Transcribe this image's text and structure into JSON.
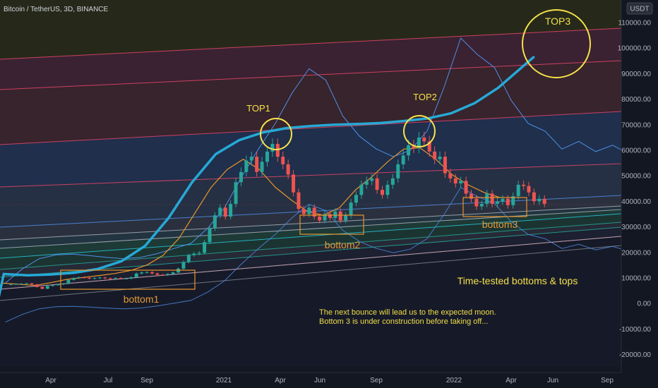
{
  "header": {
    "symbol": "Bitcoin / TetherUS, 3D, BINANCE",
    "currency_label": "USDT"
  },
  "colors": {
    "background": "#131722",
    "mean_curve": "#26a9d6",
    "ema_line": "#e8952c",
    "upper_band_line": "#4f8fe8",
    "candle_up": "#26a69a",
    "candle_down": "#ef5350",
    "circle": "#f5e04a",
    "box": "#e8952c"
  },
  "chart_data": {
    "type": "candlestick",
    "y_axis": {
      "ticks": [
        "110000.00",
        "100000.00",
        "90000.00",
        "80000.00",
        "70000.00",
        "60000.00",
        "50000.00",
        "40000.00",
        "30000.00",
        "20000.00",
        "10000.00",
        "0.00",
        "-10000.00",
        "-20000.00"
      ],
      "range": [
        -25000,
        115000
      ]
    },
    "x_axis": {
      "ticks": [
        "Apr",
        "Jul",
        "Sep",
        "2021",
        "Apr",
        "Jun",
        "Sep",
        "2022",
        "Apr",
        "Jun",
        "Sep"
      ]
    },
    "bands": [
      {
        "name": "band-top",
        "color": "#e8456a"
      },
      {
        "name": "band-2",
        "color": "#e8456a"
      },
      {
        "name": "band-3",
        "color": "#e8456a"
      },
      {
        "name": "band-4",
        "color": "#e8456a"
      },
      {
        "name": "band-5",
        "color": "#4f8fe8"
      },
      {
        "name": "band-6",
        "color": "#aab0bb"
      },
      {
        "name": "band-7",
        "color": "#aab0bb"
      },
      {
        "name": "band-8",
        "color": "#26c6da"
      },
      {
        "name": "band-9",
        "color": "#26a69a"
      },
      {
        "name": "band-10",
        "color": "#26a69a"
      },
      {
        "name": "band-11",
        "color": "#e8456a"
      },
      {
        "name": "band-12",
        "color": "#aab0bb"
      }
    ],
    "annotations": {
      "top1": "TOP1",
      "top2": "TOP2",
      "top3": "TOP3",
      "bottom1": "bottom1",
      "bottom2": "bottom2",
      "bottom3": "bottom3",
      "subtitle": "Time-tested bottoms & tops",
      "note_line1": "The next bounce will lead us to the expected moon.",
      "note_line2": "Bottom 3 is under construction before taking off..."
    },
    "price_path": [
      [
        0,
        6800
      ],
      [
        3,
        7000
      ],
      [
        6,
        7100
      ],
      [
        9,
        7200
      ],
      [
        12,
        7300
      ],
      [
        15,
        6900
      ],
      [
        18,
        5900
      ],
      [
        21,
        5200
      ],
      [
        24,
        6300
      ],
      [
        27,
        6600
      ],
      [
        30,
        6900
      ],
      [
        33,
        7200
      ],
      [
        36,
        8700
      ],
      [
        39,
        9400
      ],
      [
        42,
        9700
      ],
      [
        45,
        9500
      ],
      [
        48,
        9200
      ],
      [
        51,
        9400
      ],
      [
        54,
        9600
      ],
      [
        57,
        9300
      ],
      [
        60,
        9100
      ],
      [
        63,
        9400
      ],
      [
        66,
        9200
      ],
      [
        69,
        9200
      ],
      [
        72,
        9700
      ],
      [
        75,
        11200
      ],
      [
        78,
        11600
      ],
      [
        81,
        11700
      ],
      [
        84,
        11200
      ],
      [
        87,
        10700
      ],
      [
        90,
        10600
      ],
      [
        93,
        11000
      ],
      [
        96,
        11600
      ],
      [
        99,
        13100
      ],
      [
        102,
        15700
      ],
      [
        105,
        18400
      ],
      [
        108,
        19000
      ],
      [
        111,
        19300
      ],
      [
        114,
        23500
      ],
      [
        117,
        28900
      ],
      [
        120,
        34000
      ],
      [
        123,
        37000
      ],
      [
        126,
        33500
      ],
      [
        129,
        38500
      ],
      [
        132,
        47000
      ],
      [
        135,
        51000
      ],
      [
        138,
        55500
      ],
      [
        141,
        57000
      ],
      [
        144,
        51000
      ],
      [
        147,
        55000
      ],
      [
        150,
        59000
      ],
      [
        153,
        62000
      ],
      [
        156,
        57000
      ],
      [
        159,
        54000
      ],
      [
        162,
        50000
      ],
      [
        165,
        43000
      ],
      [
        168,
        36500
      ],
      [
        171,
        34500
      ],
      [
        174,
        37000
      ],
      [
        177,
        33500
      ],
      [
        180,
        32000
      ],
      [
        183,
        34500
      ],
      [
        186,
        33000
      ],
      [
        189,
        35500
      ],
      [
        192,
        32000
      ],
      [
        195,
        34000
      ],
      [
        198,
        39000
      ],
      [
        201,
        42000
      ],
      [
        204,
        46000
      ],
      [
        207,
        47500
      ],
      [
        210,
        48500
      ],
      [
        213,
        44000
      ],
      [
        216,
        42000
      ],
      [
        219,
        46000
      ],
      [
        222,
        48500
      ],
      [
        225,
        54000
      ],
      [
        228,
        57500
      ],
      [
        231,
        61500
      ],
      [
        234,
        60500
      ],
      [
        237,
        64500
      ],
      [
        240,
        63000
      ],
      [
        243,
        59000
      ],
      [
        246,
        56000
      ],
      [
        249,
        57000
      ],
      [
        252,
        50500
      ],
      [
        255,
        48500
      ],
      [
        258,
        46500
      ],
      [
        261,
        47500
      ],
      [
        264,
        42500
      ],
      [
        267,
        40500
      ],
      [
        270,
        37500
      ],
      [
        273,
        38500
      ],
      [
        276,
        42500
      ],
      [
        279,
        38500
      ],
      [
        282,
        39500
      ],
      [
        285,
        40500
      ],
      [
        288,
        38000
      ],
      [
        291,
        41500
      ],
      [
        294,
        46000
      ],
      [
        297,
        45500
      ],
      [
        300,
        43000
      ],
      [
        303,
        39500
      ],
      [
        306,
        40500
      ],
      [
        309,
        38500
      ]
    ],
    "mean_curve_path": [
      [
        -10,
        -10000
      ],
      [
        0,
        11000
      ],
      [
        20,
        10500
      ],
      [
        40,
        10800
      ],
      [
        60,
        11500
      ],
      [
        80,
        13000
      ],
      [
        100,
        16000
      ],
      [
        120,
        22000
      ],
      [
        140,
        33000
      ],
      [
        160,
        47000
      ],
      [
        180,
        58000
      ],
      [
        200,
        63500
      ],
      [
        220,
        66500
      ],
      [
        240,
        68200
      ],
      [
        260,
        69000
      ],
      [
        280,
        69500
      ],
      [
        300,
        69800
      ],
      [
        320,
        70200
      ],
      [
        340,
        71000
      ],
      [
        360,
        72000
      ],
      [
        380,
        74000
      ],
      [
        400,
        78000
      ],
      [
        420,
        84000
      ],
      [
        440,
        92000
      ],
      [
        450,
        96000
      ]
    ],
    "ema_path": [
      [
        0,
        7400
      ],
      [
        20,
        7000
      ],
      [
        40,
        6500
      ],
      [
        60,
        7600
      ],
      [
        80,
        8900
      ],
      [
        100,
        9600
      ],
      [
        120,
        10400
      ],
      [
        140,
        11200
      ],
      [
        160,
        12400
      ],
      [
        180,
        14500
      ],
      [
        200,
        18300
      ],
      [
        220,
        25000
      ],
      [
        240,
        35000
      ],
      [
        260,
        45000
      ],
      [
        280,
        52000
      ],
      [
        300,
        56000
      ],
      [
        320,
        52000
      ],
      [
        340,
        45000
      ],
      [
        360,
        40000
      ],
      [
        380,
        35500
      ],
      [
        400,
        34000
      ],
      [
        420,
        37000
      ],
      [
        440,
        44000
      ],
      [
        460,
        49000
      ],
      [
        480,
        55000
      ],
      [
        500,
        60000
      ],
      [
        520,
        60500
      ],
      [
        540,
        56000
      ],
      [
        560,
        50000
      ],
      [
        580,
        46000
      ],
      [
        600,
        43000
      ],
      [
        620,
        41000
      ]
    ],
    "upper_band_path": [
      [
        0,
        7500
      ],
      [
        10,
        13000
      ],
      [
        20,
        17000
      ],
      [
        30,
        18500
      ],
      [
        40,
        18800
      ],
      [
        50,
        18200
      ],
      [
        60,
        17500
      ],
      [
        70,
        17000
      ],
      [
        80,
        17500
      ],
      [
        90,
        19000
      ],
      [
        100,
        21000
      ],
      [
        110,
        23000
      ],
      [
        120,
        29000
      ],
      [
        130,
        37000
      ],
      [
        140,
        49000
      ],
      [
        150,
        60000
      ],
      [
        160,
        70000
      ],
      [
        170,
        82000
      ],
      [
        180,
        91500
      ],
      [
        190,
        87000
      ],
      [
        200,
        73000
      ],
      [
        210,
        65000
      ],
      [
        220,
        60000
      ],
      [
        230,
        57000
      ],
      [
        240,
        59500
      ],
      [
        250,
        67000
      ],
      [
        260,
        84000
      ],
      [
        270,
        103500
      ],
      [
        280,
        97000
      ],
      [
        290,
        92000
      ],
      [
        300,
        79000
      ],
      [
        310,
        70000
      ],
      [
        320,
        67000
      ],
      [
        330,
        60000
      ],
      [
        340,
        63000
      ],
      [
        350,
        59000
      ],
      [
        360,
        61500
      ],
      [
        370,
        58000
      ],
      [
        380,
        57000
      ]
    ]
  }
}
